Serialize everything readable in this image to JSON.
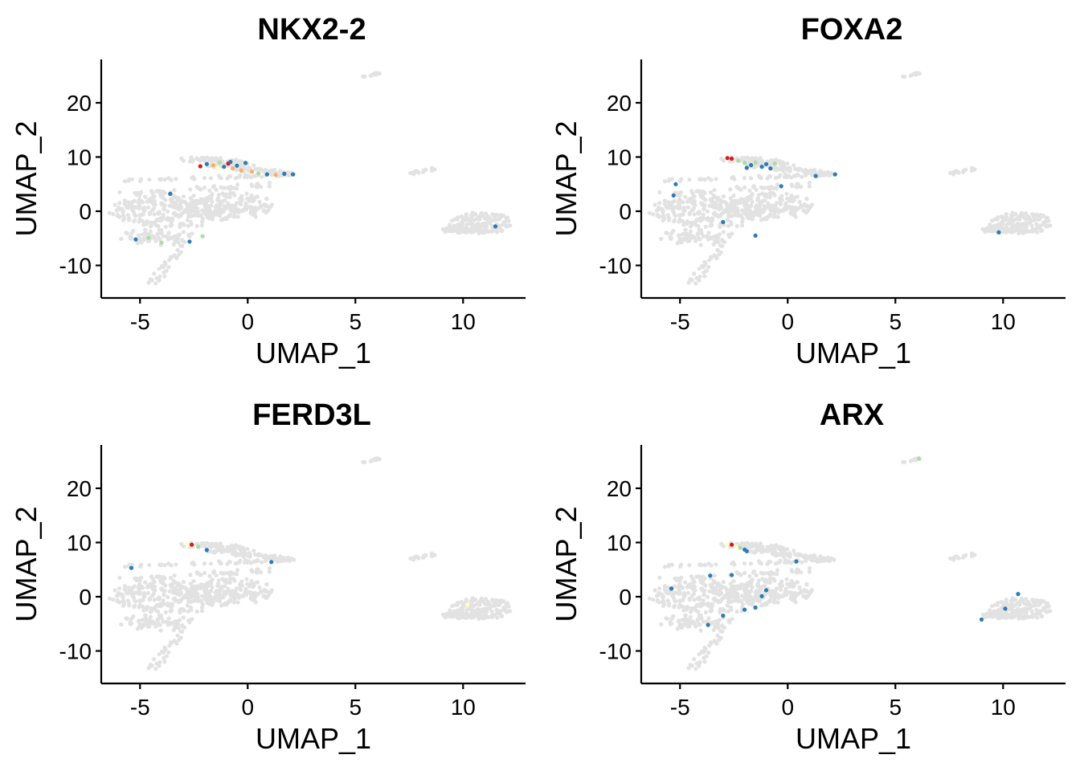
{
  "chart_data": [
    {
      "type": "scatter",
      "title": "NKX2-2",
      "xlabel": "UMAP_1",
      "ylabel": "UMAP_2",
      "xlim": [
        -6.8,
        12.9
      ],
      "ylim": [
        -16,
        28
      ],
      "xticks": [
        -5,
        0,
        5,
        10
      ],
      "yticks": [
        -10,
        0,
        10,
        20
      ],
      "xtick_labels": [
        "-5",
        "0",
        "5",
        "10"
      ],
      "ytick_labels": [
        "-10",
        "0",
        "10",
        "20"
      ],
      "grid": false,
      "background_color": "#e2e2e2",
      "expressing_points": [
        {
          "x": -2.2,
          "y": 8.3,
          "c": "#d7191c"
        },
        {
          "x": -1.9,
          "y": 8.7,
          "c": "#2c7bb6"
        },
        {
          "x": -1.6,
          "y": 8.5,
          "c": "#fdae61"
        },
        {
          "x": -1.3,
          "y": 9.0,
          "c": "#abdda4"
        },
        {
          "x": -1.1,
          "y": 8.2,
          "c": "#2c7bb6"
        },
        {
          "x": -0.9,
          "y": 8.8,
          "c": "#d7191c"
        },
        {
          "x": -0.7,
          "y": 7.9,
          "c": "#fdae61"
        },
        {
          "x": -0.5,
          "y": 8.4,
          "c": "#2c7bb6"
        },
        {
          "x": -0.3,
          "y": 7.5,
          "c": "#fdae61"
        },
        {
          "x": -0.1,
          "y": 8.9,
          "c": "#2c7bb6"
        },
        {
          "x": 0.2,
          "y": 7.3,
          "c": "#fdae61"
        },
        {
          "x": 0.5,
          "y": 7.0,
          "c": "#abdda4"
        },
        {
          "x": 0.9,
          "y": 6.8,
          "c": "#2c7bb6"
        },
        {
          "x": 1.3,
          "y": 6.7,
          "c": "#fdae61"
        },
        {
          "x": 1.7,
          "y": 6.9,
          "c": "#2c7bb6"
        },
        {
          "x": 2.1,
          "y": 6.8,
          "c": "#2c7bb6"
        },
        {
          "x": -1.4,
          "y": 8.0,
          "c": "#ffffbf"
        },
        {
          "x": -0.8,
          "y": 9.1,
          "c": "#2c7bb6"
        },
        {
          "x": -5.2,
          "y": -5.2,
          "c": "#2c7bb6"
        },
        {
          "x": -4.6,
          "y": -4.9,
          "c": "#abdda4"
        },
        {
          "x": -4.0,
          "y": -5.8,
          "c": "#abdda4"
        },
        {
          "x": -3.6,
          "y": 3.2,
          "c": "#2c7bb6"
        },
        {
          "x": -2.7,
          "y": -5.6,
          "c": "#2c7bb6"
        },
        {
          "x": -2.1,
          "y": -4.6,
          "c": "#abdda4"
        },
        {
          "x": 11.5,
          "y": -2.8,
          "c": "#2c7bb6"
        }
      ]
    },
    {
      "type": "scatter",
      "title": "FOXA2",
      "xlabel": "UMAP_1",
      "ylabel": "UMAP_2",
      "xlim": [
        -6.8,
        12.9
      ],
      "ylim": [
        -16,
        28
      ],
      "xticks": [
        -5,
        0,
        5,
        10
      ],
      "yticks": [
        -10,
        0,
        10,
        20
      ],
      "xtick_labels": [
        "-5",
        "0",
        "5",
        "10"
      ],
      "ytick_labels": [
        "-10",
        "0",
        "10",
        "20"
      ],
      "grid": false,
      "background_color": "#e2e2e2",
      "expressing_points": [
        {
          "x": -2.8,
          "y": 9.8,
          "c": "#d7191c"
        },
        {
          "x": -2.6,
          "y": 9.7,
          "c": "#d7191c"
        },
        {
          "x": -2.3,
          "y": 9.3,
          "c": "#abdda4"
        },
        {
          "x": -2.0,
          "y": 8.9,
          "c": "#abdda4"
        },
        {
          "x": -1.7,
          "y": 8.5,
          "c": "#2c7bb6"
        },
        {
          "x": -1.5,
          "y": 9.0,
          "c": "#abdda4"
        },
        {
          "x": -1.2,
          "y": 8.2,
          "c": "#2c7bb6"
        },
        {
          "x": -1.0,
          "y": 8.7,
          "c": "#2c7bb6"
        },
        {
          "x": -0.8,
          "y": 7.9,
          "c": "#2c7bb6"
        },
        {
          "x": -0.6,
          "y": 8.8,
          "c": "#abdda4"
        },
        {
          "x": -1.9,
          "y": 8.0,
          "c": "#2c7bb6"
        },
        {
          "x": -0.3,
          "y": 4.6,
          "c": "#2c7bb6"
        },
        {
          "x": 1.3,
          "y": 6.5,
          "c": "#2c7bb6"
        },
        {
          "x": 2.2,
          "y": 6.8,
          "c": "#2c7bb6"
        },
        {
          "x": -5.2,
          "y": 5.0,
          "c": "#2c7bb6"
        },
        {
          "x": -5.3,
          "y": 2.9,
          "c": "#2c7bb6"
        },
        {
          "x": -3.0,
          "y": -2.0,
          "c": "#2c7bb6"
        },
        {
          "x": -1.5,
          "y": -4.5,
          "c": "#2c7bb6"
        },
        {
          "x": 9.8,
          "y": -3.9,
          "c": "#2c7bb6"
        }
      ]
    },
    {
      "type": "scatter",
      "title": "FERD3L",
      "xlabel": "UMAP_1",
      "ylabel": "UMAP_2",
      "xlim": [
        -6.8,
        12.9
      ],
      "ylim": [
        -16,
        28
      ],
      "xticks": [
        -5,
        0,
        5,
        10
      ],
      "yticks": [
        -10,
        0,
        10,
        20
      ],
      "xtick_labels": [
        "-5",
        "0",
        "5",
        "10"
      ],
      "ytick_labels": [
        "-10",
        "0",
        "10",
        "20"
      ],
      "grid": false,
      "background_color": "#e2e2e2",
      "expressing_points": [
        {
          "x": -2.8,
          "y": 9.7,
          "c": "#ffffbf"
        },
        {
          "x": -2.6,
          "y": 9.6,
          "c": "#d7191c"
        },
        {
          "x": -2.3,
          "y": 9.2,
          "c": "#abdda4"
        },
        {
          "x": -1.9,
          "y": 8.6,
          "c": "#2c7bb6"
        },
        {
          "x": 1.1,
          "y": 6.4,
          "c": "#2c7bb6"
        },
        {
          "x": -5.4,
          "y": 5.3,
          "c": "#2c7bb6"
        },
        {
          "x": 10.2,
          "y": -1.5,
          "c": "#ffffbf"
        }
      ]
    },
    {
      "type": "scatter",
      "title": "ARX",
      "xlabel": "UMAP_1",
      "ylabel": "UMAP_2",
      "xlim": [
        -6.8,
        12.9
      ],
      "ylim": [
        -16,
        28
      ],
      "xticks": [
        -5,
        0,
        5,
        10
      ],
      "yticks": [
        -10,
        0,
        10,
        20
      ],
      "xtick_labels": [
        "-5",
        "0",
        "5",
        "10"
      ],
      "ytick_labels": [
        "-10",
        "0",
        "10",
        "20"
      ],
      "grid": false,
      "background_color": "#e2e2e2",
      "expressing_points": [
        {
          "x": -2.8,
          "y": 9.7,
          "c": "#ffffbf"
        },
        {
          "x": -2.6,
          "y": 9.6,
          "c": "#d7191c"
        },
        {
          "x": -2.4,
          "y": 9.3,
          "c": "#ffffbf"
        },
        {
          "x": -2.2,
          "y": 9.0,
          "c": "#abdda4"
        },
        {
          "x": -2.0,
          "y": 8.7,
          "c": "#2c7bb6"
        },
        {
          "x": 6.1,
          "y": 25.5,
          "c": "#abdda4"
        },
        {
          "x": -1.9,
          "y": 8.4,
          "c": "#2c7bb6"
        },
        {
          "x": 0.4,
          "y": 6.5,
          "c": "#2c7bb6"
        },
        {
          "x": -3.6,
          "y": 3.9,
          "c": "#2c7bb6"
        },
        {
          "x": -2.6,
          "y": 4.0,
          "c": "#2c7bb6"
        },
        {
          "x": -5.4,
          "y": 1.5,
          "c": "#2c7bb6"
        },
        {
          "x": -1.0,
          "y": 1.2,
          "c": "#2c7bb6"
        },
        {
          "x": -1.5,
          "y": -2.0,
          "c": "#2c7bb6"
        },
        {
          "x": -1.2,
          "y": 0.1,
          "c": "#2c7bb6"
        },
        {
          "x": -3.7,
          "y": -5.2,
          "c": "#2c7bb6"
        },
        {
          "x": -3.0,
          "y": -3.5,
          "c": "#2c7bb6"
        },
        {
          "x": -2.0,
          "y": -2.4,
          "c": "#2c7bb6"
        },
        {
          "x": 9.0,
          "y": -4.2,
          "c": "#2c7bb6"
        },
        {
          "x": 10.7,
          "y": 0.5,
          "c": "#2c7bb6"
        },
        {
          "x": 10.1,
          "y": -2.2,
          "c": "#2c7bb6"
        }
      ]
    }
  ]
}
